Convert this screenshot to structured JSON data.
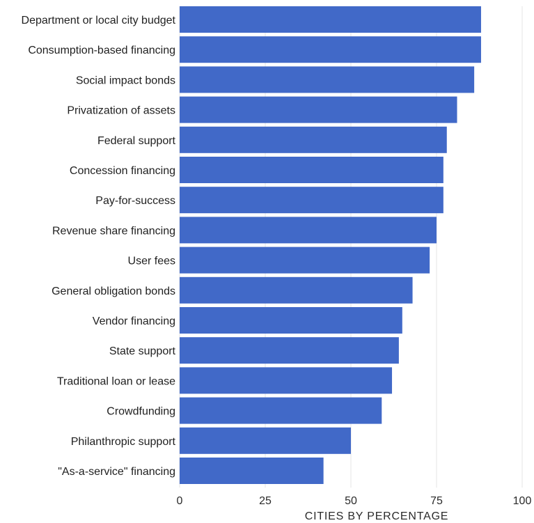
{
  "chart_data": {
    "type": "bar",
    "orientation": "horizontal",
    "categories": [
      "Department or local city budget",
      "Consumption-based financing",
      "Social impact bonds",
      "Privatization of assets",
      "Federal support",
      "Concession financing",
      "Pay-for-success",
      "Revenue share financing",
      "User fees",
      "General obligation bonds",
      "Vendor financing",
      "State support",
      "Traditional loan or lease",
      "Crowdfunding",
      "Philanthropic support",
      "\"As-a-service\" financing"
    ],
    "values": [
      88,
      88,
      86,
      81,
      78,
      77,
      77,
      75,
      73,
      68,
      65,
      64,
      62,
      59,
      50,
      42
    ],
    "xlabel": "CITIES BY PERCENTAGE",
    "ylabel": "",
    "title": "",
    "xlim": [
      0,
      100
    ],
    "xticks": [
      0,
      25,
      50,
      75,
      100
    ],
    "tick_labels": [
      "0",
      "25",
      "50",
      "75",
      "100"
    ],
    "grid": true,
    "bar_color": "#4169c8"
  }
}
